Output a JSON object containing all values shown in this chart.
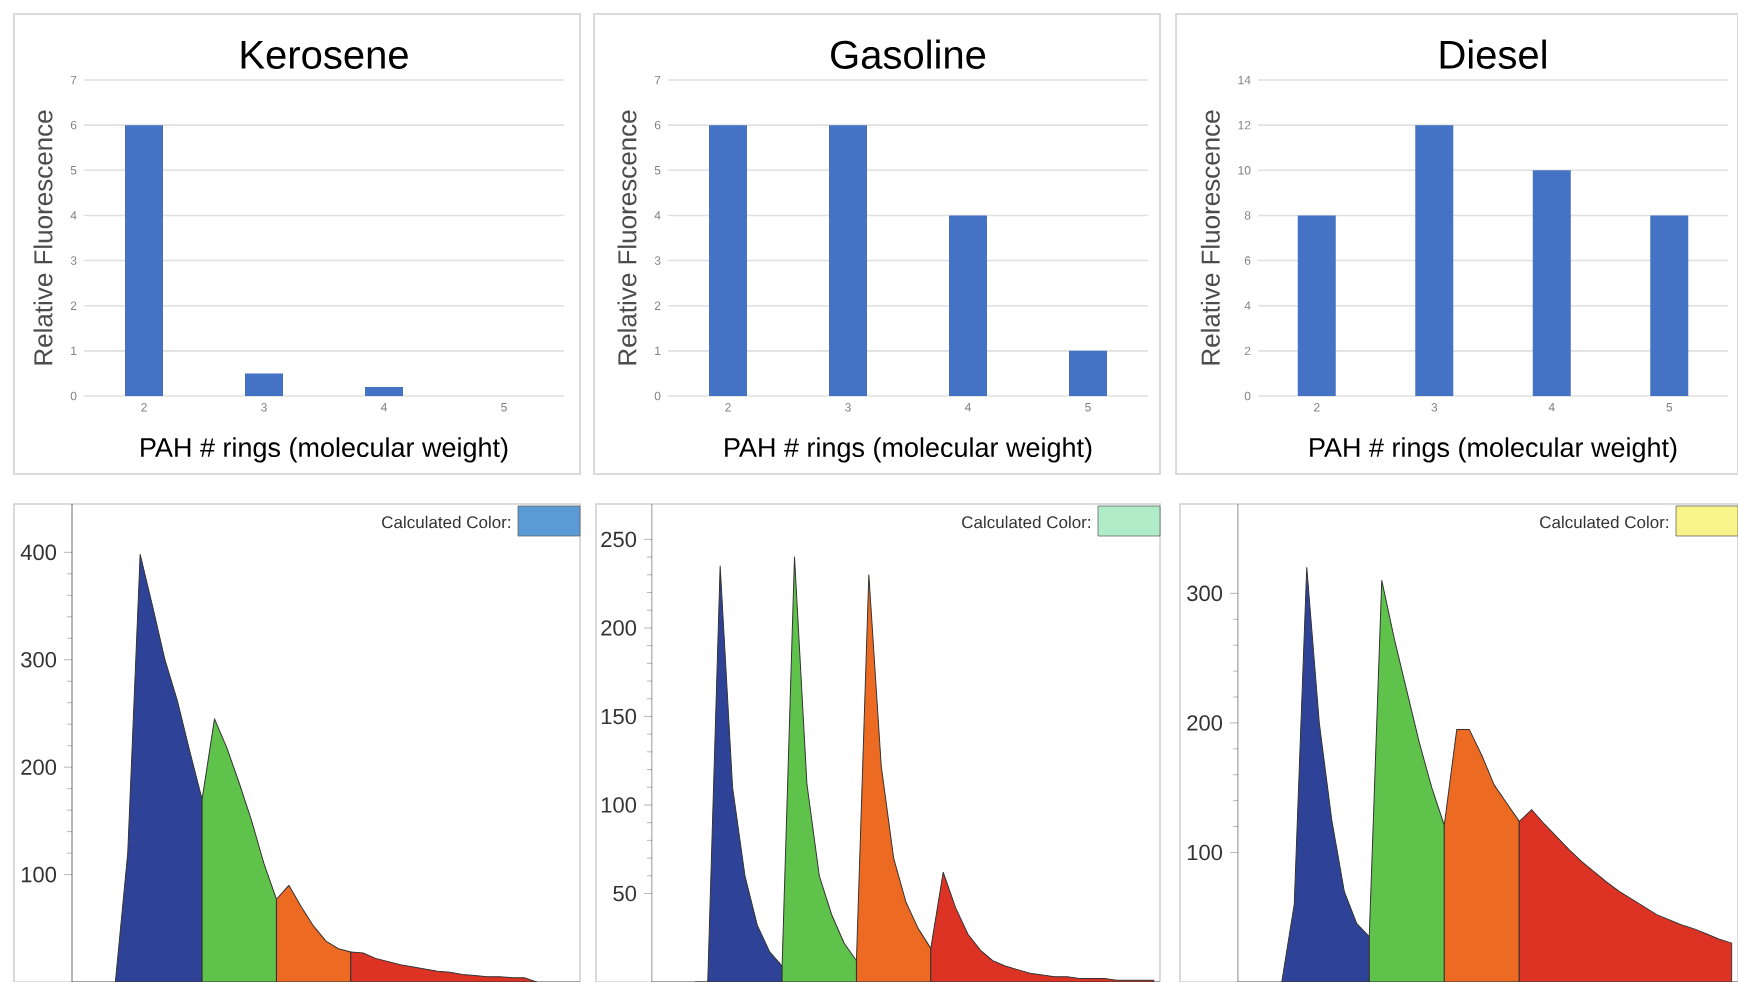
{
  "chart_data": [
    {
      "type": "bar",
      "title": "Kerosene",
      "xlabel": "PAH # rings (molecular weight)",
      "ylabel": "Relative Fluorescence",
      "categories": [
        "2",
        "3",
        "4",
        "5"
      ],
      "values": [
        6,
        0.5,
        0.2,
        0
      ],
      "color": "#4472c4",
      "ylim": [
        0,
        7
      ],
      "yticks": [
        0,
        1,
        2,
        3,
        4,
        5,
        6,
        7
      ],
      "grid": "y"
    },
    {
      "type": "bar",
      "title": "Gasoline",
      "xlabel": "PAH # rings (molecular weight)",
      "ylabel": "Relative Fluorescence",
      "categories": [
        "2",
        "3",
        "4",
        "5"
      ],
      "values": [
        6,
        6,
        4,
        1
      ],
      "color": "#4472c4",
      "ylim": [
        0,
        7
      ],
      "yticks": [
        0,
        1,
        2,
        3,
        4,
        5,
        6,
        7
      ],
      "grid": "y"
    },
    {
      "type": "bar",
      "title": "Diesel",
      "xlabel": "PAH # rings (molecular weight)",
      "ylabel": "Relative Fluorescence",
      "categories": [
        "2",
        "3",
        "4",
        "5"
      ],
      "values": [
        8,
        12,
        10,
        8
      ],
      "color": "#4472c4",
      "ylim": [
        0,
        14
      ],
      "yticks": [
        0,
        2,
        4,
        6,
        8,
        10,
        12,
        14
      ],
      "grid": "y"
    },
    {
      "type": "area",
      "annotations": [
        "Calculated Color:"
      ],
      "categories": [
        null,
        null,
        null,
        null,
        null,
        null,
        null,
        null,
        null,
        null,
        null,
        null,
        null,
        null,
        null,
        null,
        null,
        null,
        null,
        null,
        null,
        null,
        null,
        null,
        null,
        null,
        null,
        null,
        null,
        null,
        null,
        null,
        null,
        null,
        null,
        null,
        null,
        null,
        null,
        null,
        null
      ],
      "ylim": [
        0,
        445
      ],
      "yticks": [
        100,
        200,
        300,
        400
      ],
      "series": [
        {
          "color": "#2e4397",
          "values": [
            null,
            null,
            null,
            0,
            120,
            398,
            350,
            300,
            262,
            215,
            170,
            null,
            null,
            null,
            null,
            null,
            null,
            null,
            null,
            null,
            null,
            null,
            null,
            null,
            null,
            null,
            null,
            null,
            null,
            null,
            null,
            null,
            null,
            null,
            null,
            null,
            null,
            null,
            null,
            null,
            null
          ]
        },
        {
          "color": "#5fc24a",
          "values": [
            null,
            null,
            null,
            null,
            null,
            null,
            null,
            null,
            null,
            null,
            170,
            245,
            218,
            185,
            150,
            110,
            77,
            null,
            null,
            null,
            null,
            null,
            null,
            null,
            null,
            null,
            null,
            null,
            null,
            null,
            null,
            null,
            null,
            null,
            null,
            null,
            null,
            null,
            null,
            null,
            null
          ]
        },
        {
          "color": "#ec6a22",
          "values": [
            null,
            null,
            null,
            null,
            null,
            null,
            null,
            null,
            null,
            null,
            null,
            null,
            null,
            null,
            null,
            null,
            77,
            90,
            70,
            52,
            38,
            31,
            28,
            null,
            null,
            null,
            null,
            null,
            null,
            null,
            null,
            null,
            null,
            null,
            null,
            null,
            null,
            null,
            null,
            null,
            null
          ]
        },
        {
          "color": "#dc3325",
          "values": [
            null,
            null,
            null,
            null,
            null,
            null,
            null,
            null,
            null,
            null,
            null,
            null,
            null,
            null,
            null,
            null,
            null,
            null,
            null,
            null,
            null,
            null,
            28,
            27,
            22,
            19,
            16,
            14,
            12,
            10,
            9,
            7,
            6,
            5,
            5,
            4,
            4,
            0,
            null,
            null,
            null
          ]
        }
      ]
    },
    {
      "type": "area",
      "annotations": [
        "Calculated Color:"
      ],
      "categories": [
        null,
        null,
        null,
        null,
        null,
        null,
        null,
        null,
        null,
        null,
        null,
        null,
        null,
        null,
        null,
        null,
        null,
        null,
        null,
        null,
        null,
        null,
        null,
        null,
        null,
        null,
        null,
        null,
        null,
        null,
        null,
        null,
        null,
        null,
        null,
        null,
        null,
        null,
        null,
        null,
        null
      ],
      "ylim": [
        0,
        270
      ],
      "yticks": [
        50,
        100,
        150,
        200,
        250
      ],
      "series": [
        {
          "color": "#2e4397",
          "values": [
            null,
            null,
            null,
            0,
            0,
            235,
            110,
            60,
            32,
            17,
            9,
            null,
            null,
            null,
            null,
            null,
            null,
            null,
            null,
            null,
            null,
            null,
            null,
            null,
            null,
            null,
            null,
            null,
            null,
            null,
            null,
            null,
            null,
            null,
            null,
            null,
            null,
            null,
            null,
            null,
            null
          ]
        },
        {
          "color": "#5fc24a",
          "values": [
            null,
            null,
            null,
            null,
            null,
            null,
            null,
            null,
            null,
            null,
            9,
            240,
            112,
            60,
            38,
            22,
            12,
            null,
            null,
            null,
            null,
            null,
            null,
            null,
            null,
            null,
            null,
            null,
            null,
            null,
            null,
            null,
            null,
            null,
            null,
            null,
            null,
            null,
            null,
            null,
            null
          ]
        },
        {
          "color": "#ec6a22",
          "values": [
            null,
            null,
            null,
            null,
            null,
            null,
            null,
            null,
            null,
            null,
            null,
            null,
            null,
            null,
            null,
            null,
            12,
            230,
            122,
            70,
            45,
            30,
            19,
            null,
            null,
            null,
            null,
            null,
            null,
            null,
            null,
            null,
            null,
            null,
            null,
            null,
            null,
            null,
            null,
            null,
            null
          ]
        },
        {
          "color": "#dc3325",
          "values": [
            null,
            null,
            null,
            null,
            null,
            null,
            null,
            null,
            null,
            null,
            null,
            null,
            null,
            null,
            null,
            null,
            null,
            null,
            null,
            null,
            null,
            null,
            19,
            62,
            42,
            27,
            18,
            12,
            9,
            7,
            5,
            4,
            3,
            3,
            2,
            2,
            2,
            1,
            1,
            1,
            1
          ]
        }
      ]
    },
    {
      "type": "area",
      "annotations": [
        "Calculated Color:"
      ],
      "categories": [
        null,
        null,
        null,
        null,
        null,
        null,
        null,
        null,
        null,
        null,
        null,
        null,
        null,
        null,
        null,
        null,
        null,
        null,
        null,
        null,
        null,
        null,
        null,
        null,
        null,
        null,
        null,
        null,
        null,
        null,
        null,
        null,
        null,
        null,
        null,
        null,
        null,
        null,
        null,
        null
      ],
      "ylim": [
        0,
        369
      ],
      "yticks": [
        100,
        200,
        300
      ],
      "series": [
        {
          "color": "#2e4397",
          "values": [
            null,
            null,
            null,
            0,
            60,
            320,
            200,
            125,
            70,
            45,
            35,
            null,
            null,
            null,
            null,
            null,
            null,
            null,
            null,
            null,
            null,
            null,
            null,
            null,
            null,
            null,
            null,
            null,
            null,
            null,
            null,
            null,
            null,
            null,
            null,
            null,
            null,
            null,
            null,
            null
          ]
        },
        {
          "color": "#5fc24a",
          "values": [
            null,
            null,
            null,
            null,
            null,
            null,
            null,
            null,
            null,
            null,
            35,
            310,
            265,
            225,
            185,
            150,
            121,
            null,
            null,
            null,
            null,
            null,
            null,
            null,
            null,
            null,
            null,
            null,
            null,
            null,
            null,
            null,
            null,
            null,
            null,
            null,
            null,
            null,
            null,
            null
          ]
        },
        {
          "color": "#ec6a22",
          "values": [
            null,
            null,
            null,
            null,
            null,
            null,
            null,
            null,
            null,
            null,
            null,
            null,
            null,
            null,
            null,
            null,
            121,
            195,
            195,
            175,
            152,
            138,
            124,
            null,
            null,
            null,
            null,
            null,
            null,
            null,
            null,
            null,
            null,
            null,
            null,
            null,
            null,
            null,
            null,
            null
          ]
        },
        {
          "color": "#dc3325",
          "values": [
            null,
            null,
            null,
            null,
            null,
            null,
            null,
            null,
            null,
            null,
            null,
            null,
            null,
            null,
            null,
            null,
            null,
            null,
            null,
            null,
            null,
            null,
            124,
            133,
            122,
            112,
            102,
            93,
            85,
            77,
            70,
            64,
            58,
            52,
            48,
            44,
            41,
            37,
            33,
            30
          ]
        }
      ]
    }
  ]
}
